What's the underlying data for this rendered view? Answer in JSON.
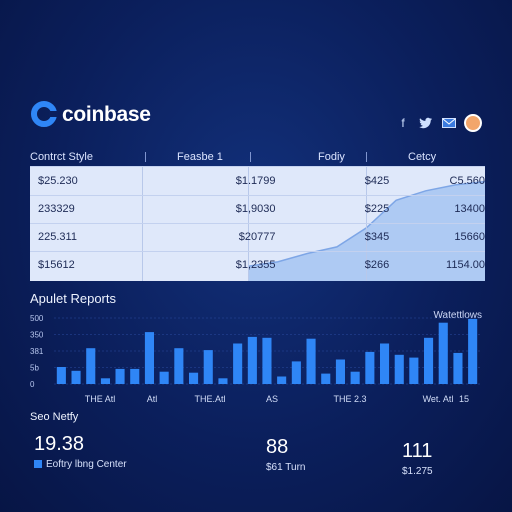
{
  "header": {
    "brand": "coinbase",
    "social_icons": [
      "facebook-icon",
      "twitter-icon",
      "mail-icon",
      "avatar"
    ]
  },
  "table": {
    "columns": [
      "Contrct Style",
      "Feasbe 1",
      "Fodiy",
      "Cetcy"
    ],
    "rows": [
      [
        "$25.230",
        "$1.1799",
        "$425",
        "C5.560"
      ],
      [
        "233329",
        "$1,9030",
        "$225",
        "13400"
      ],
      [
        "225.311",
        "$20777",
        "$345",
        "15660"
      ],
      [
        "$15612",
        "$1,2355",
        "$266",
        "1154.00"
      ]
    ],
    "trend": [
      4.0,
      5.2,
      7.5,
      9.3,
      14.5,
      22.0,
      24.6,
      26.2,
      27.1
    ]
  },
  "bars": {
    "title": "Apulet Reports",
    "legend": "Watettlows",
    "y_ticks": [
      "500",
      "350",
      "381",
      "5b",
      "0"
    ],
    "x_labels": [
      "THE Atl",
      "Atl",
      "THE.Atl",
      "AS",
      "THE 2.3",
      "Wet. Atl",
      "15"
    ],
    "values": [
      18,
      14,
      38,
      6,
      16,
      16,
      55,
      13,
      38,
      12,
      36,
      6,
      43,
      50,
      49,
      8,
      24,
      48,
      11,
      26,
      13,
      34,
      43,
      31,
      28,
      49,
      65,
      33,
      69
    ]
  },
  "stats": {
    "title": "Seo Netfy",
    "items": [
      {
        "value": "19.38",
        "label": "Eoftry lbng Center"
      },
      {
        "value": "88",
        "label": "$61 Turn"
      },
      {
        "value": "111",
        "label": "$1.275"
      }
    ]
  },
  "colors": {
    "background": "#0b1f5c",
    "accent": "#2f86f6",
    "table_bg": "#dfe8fa",
    "area_fill": "#a9c6f2"
  }
}
